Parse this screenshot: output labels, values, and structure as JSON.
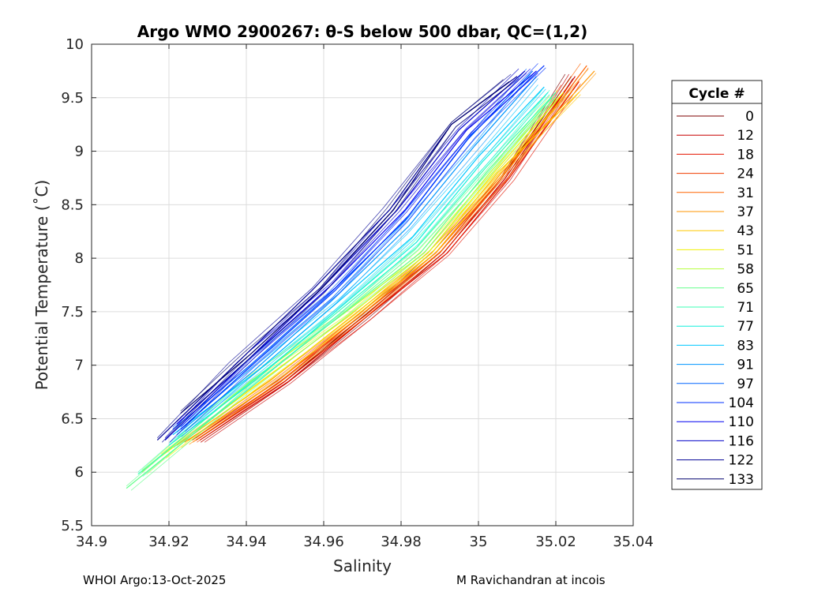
{
  "chart_data": {
    "type": "line",
    "title": "Argo WMO 2900267: θ-S below 500 dbar,  QC=(1,2)",
    "xlabel": "Salinity",
    "ylabel": "Potential Temperature (˚C)",
    "xlim": [
      34.9,
      35.04
    ],
    "ylim": [
      5.5,
      10
    ],
    "xticks": [
      "34.9",
      "34.92",
      "34.94",
      "34.96",
      "34.98",
      "35",
      "35.02",
      "35.04"
    ],
    "yticks": [
      "5.5",
      "6",
      "6.5",
      "7",
      "7.5",
      "8",
      "8.5",
      "9",
      "9.5",
      "10"
    ],
    "grid": true,
    "legend": {
      "title": "Cycle #",
      "placement": "right",
      "entries": [
        {
          "name": "0",
          "color": "#7f0000"
        },
        {
          "name": "12",
          "color": "#c80000"
        },
        {
          "name": "18",
          "color": "#e41400"
        },
        {
          "name": "24",
          "color": "#f03c00"
        },
        {
          "name": "31",
          "color": "#ff6400"
        },
        {
          "name": "37",
          "color": "#ff9600"
        },
        {
          "name": "43",
          "color": "#ffc800"
        },
        {
          "name": "51",
          "color": "#f0f000"
        },
        {
          "name": "58",
          "color": "#b4ff3c"
        },
        {
          "name": "65",
          "color": "#64ff8c"
        },
        {
          "name": "71",
          "color": "#3cffb4"
        },
        {
          "name": "77",
          "color": "#14f0dc"
        },
        {
          "name": "83",
          "color": "#00c8ff"
        },
        {
          "name": "91",
          "color": "#0096ff"
        },
        {
          "name": "97",
          "color": "#0064ff"
        },
        {
          "name": "104",
          "color": "#0032ff"
        },
        {
          "name": "110",
          "color": "#0000f0"
        },
        {
          "name": "116",
          "color": "#0000c8"
        },
        {
          "name": "122",
          "color": "#000096"
        },
        {
          "name": "133",
          "color": "#00006e"
        }
      ]
    },
    "series": [
      {
        "name": "0",
        "color": "#7f0000",
        "x": [
          34.927,
          34.95,
          34.97,
          34.99,
          35.006,
          35.024
        ],
        "y": [
          6.3,
          6.85,
          7.45,
          8.05,
          8.75,
          9.7
        ]
      },
      {
        "name": "12",
        "color": "#c80000",
        "x": [
          34.928,
          34.951,
          34.971,
          34.991,
          35.007,
          35.025
        ],
        "y": [
          6.3,
          6.85,
          7.45,
          8.05,
          8.75,
          9.7
        ]
      },
      {
        "name": "18",
        "color": "#e41400",
        "x": [
          34.927,
          34.95,
          34.971,
          34.992,
          35.008,
          35.026
        ],
        "y": [
          6.3,
          6.85,
          7.45,
          8.05,
          8.75,
          9.65
        ]
      },
      {
        "name": "24",
        "color": "#f03c00",
        "x": [
          34.926,
          34.949,
          34.969,
          34.99,
          35.006,
          35.023
        ],
        "y": [
          6.3,
          6.85,
          7.45,
          8.05,
          8.75,
          9.6
        ]
      },
      {
        "name": "31",
        "color": "#ff6400",
        "x": [
          34.925,
          34.948,
          34.969,
          34.989,
          35.006,
          35.028
        ],
        "y": [
          6.3,
          6.85,
          7.45,
          8.05,
          8.75,
          9.8
        ]
      },
      {
        "name": "37",
        "color": "#ff9600",
        "x": [
          34.924,
          34.948,
          34.968,
          34.989,
          35.006,
          35.03
        ],
        "y": [
          6.28,
          6.85,
          7.45,
          8.05,
          8.8,
          9.75
        ]
      },
      {
        "name": "43",
        "color": "#ffc800",
        "x": [
          34.922,
          34.946,
          34.967,
          34.988,
          35.005,
          35.026
        ],
        "y": [
          6.25,
          6.85,
          7.45,
          8.05,
          8.8,
          9.55
        ]
      },
      {
        "name": "51",
        "color": "#f0f000",
        "x": [
          34.918,
          34.944,
          34.966,
          34.987,
          35.004,
          35.022
        ],
        "y": [
          6.15,
          6.85,
          7.45,
          8.05,
          8.8,
          9.55
        ]
      },
      {
        "name": "58",
        "color": "#b4ff3c",
        "x": [
          34.913,
          34.941,
          34.964,
          34.986,
          35.003,
          35.02
        ],
        "y": [
          6.0,
          6.85,
          7.45,
          8.05,
          8.8,
          9.5
        ]
      },
      {
        "name": "65",
        "color": "#64ff8c",
        "x": [
          34.909,
          34.938,
          34.962,
          34.985,
          35.002,
          35.019
        ],
        "y": [
          5.85,
          6.7,
          7.4,
          8.05,
          8.8,
          9.5
        ]
      },
      {
        "name": "71",
        "color": "#3cffb4",
        "x": [
          34.912,
          34.938,
          34.962,
          34.984,
          35.002,
          35.02
        ],
        "y": [
          5.98,
          6.75,
          7.45,
          8.1,
          8.85,
          9.55
        ]
      },
      {
        "name": "77",
        "color": "#14f0dc",
        "x": [
          34.92,
          34.942,
          34.963,
          34.984,
          35.001,
          35.018
        ],
        "y": [
          6.25,
          6.85,
          7.5,
          8.15,
          8.9,
          9.55
        ]
      },
      {
        "name": "83",
        "color": "#00c8ff",
        "x": [
          34.921,
          34.943,
          34.964,
          34.983,
          35.0,
          35.017
        ],
        "y": [
          6.35,
          6.95,
          7.6,
          8.2,
          8.95,
          9.6
        ]
      },
      {
        "name": "91",
        "color": "#0096ff",
        "x": [
          34.922,
          34.942,
          34.962,
          34.982,
          34.999,
          35.015
        ],
        "y": [
          6.35,
          6.95,
          7.6,
          8.3,
          9.05,
          9.7
        ]
      },
      {
        "name": "97",
        "color": "#0064ff",
        "x": [
          34.921,
          34.941,
          34.961,
          34.981,
          34.997,
          35.014
        ],
        "y": [
          6.4,
          7.0,
          7.65,
          8.35,
          9.1,
          9.75
        ]
      },
      {
        "name": "104",
        "color": "#0032ff",
        "x": [
          34.923,
          34.943,
          34.963,
          34.982,
          34.998,
          35.017
        ],
        "y": [
          6.4,
          7.05,
          7.7,
          8.4,
          9.15,
          9.8
        ]
      },
      {
        "name": "110",
        "color": "#0000f0",
        "x": [
          34.922,
          34.942,
          34.962,
          34.981,
          34.997,
          35.015
        ],
        "y": [
          6.45,
          7.1,
          7.75,
          8.45,
          9.2,
          9.75
        ]
      },
      {
        "name": "116",
        "color": "#0000c8",
        "x": [
          34.919,
          34.939,
          34.959,
          34.979,
          34.995,
          35.012
        ],
        "y": [
          6.3,
          7.0,
          7.7,
          8.45,
          9.2,
          9.75
        ]
      },
      {
        "name": "122",
        "color": "#000096",
        "x": [
          34.917,
          34.937,
          34.957,
          34.977,
          34.993,
          35.01
        ],
        "y": [
          6.3,
          7.0,
          7.7,
          8.45,
          9.25,
          9.7
        ]
      },
      {
        "name": "133",
        "color": "#00006e",
        "x": [
          34.923,
          34.941,
          34.959,
          34.978,
          34.993,
          35.008
        ],
        "y": [
          6.55,
          7.1,
          7.7,
          8.45,
          9.25,
          9.65
        ]
      }
    ]
  },
  "footer": {
    "left": "WHOI Argo:13-Oct-2025",
    "right": "M Ravichandran at incois"
  }
}
